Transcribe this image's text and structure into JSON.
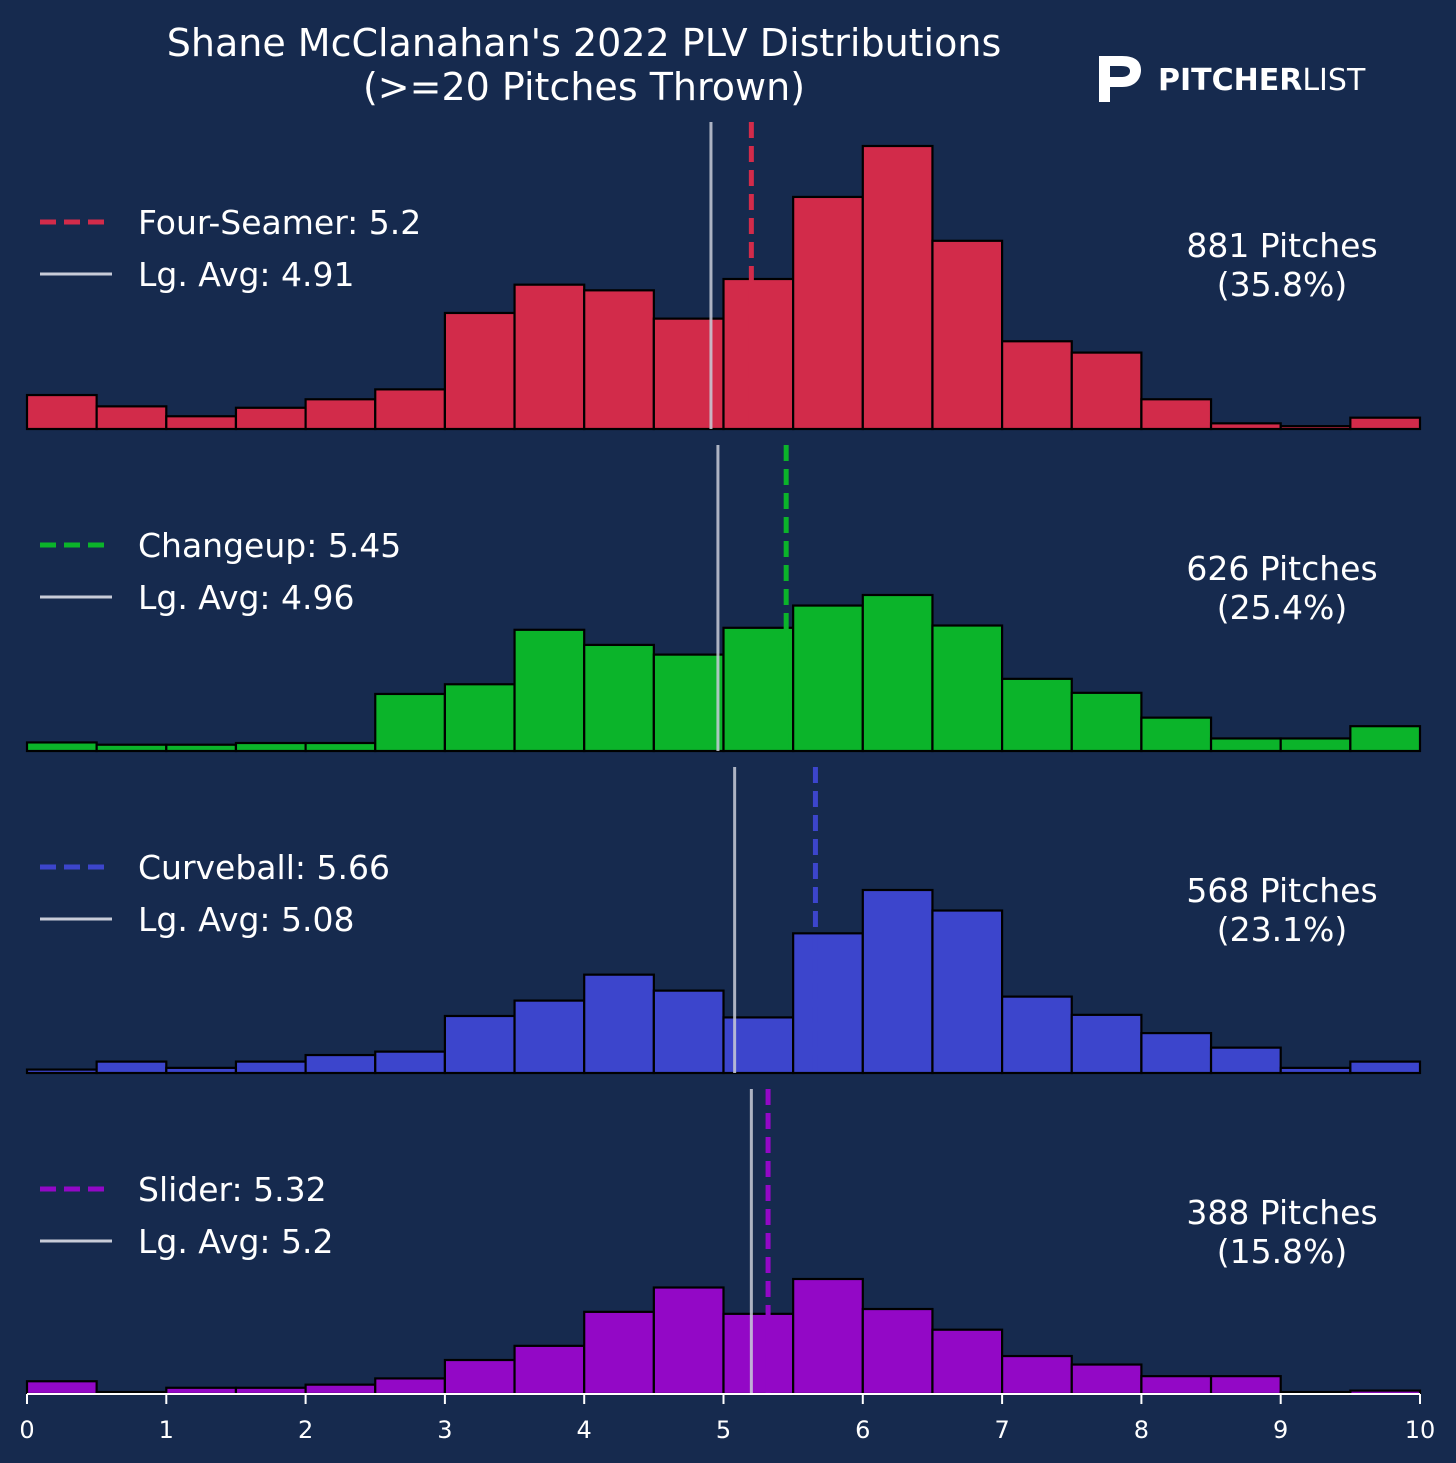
{
  "chart_data": {
    "type": "bar",
    "title_line1": "Shane McClanahan's 2022 PLV Distributions",
    "title_line2": "(>=20 Pitches Thrown)",
    "logo": {
      "bold": "PITCHER",
      "light": "LIST"
    },
    "xlim": [
      0,
      10
    ],
    "xticks": [
      0,
      1,
      2,
      3,
      4,
      5,
      6,
      7,
      8,
      9,
      10
    ],
    "bin_width": 0.5,
    "bin_starts": [
      0,
      0.5,
      1,
      1.5,
      2,
      2.5,
      3,
      3.5,
      4,
      4.5,
      5,
      5.5,
      6,
      6.5,
      7,
      7.5,
      8,
      8.5,
      9,
      9.5
    ],
    "panels": [
      {
        "pitch": "Four-Seamer",
        "color": "#d22b4a",
        "mean": 5.2,
        "league_avg": 4.91,
        "legend_pitch": "Four-Seamer: 5.2",
        "legend_avg": "Lg. Avg: 4.91",
        "count_label": "881 Pitches",
        "pct_label": "(35.8%)",
        "ymax": 1.0,
        "values": [
          0.12,
          0.08,
          0.045,
          0.075,
          0.105,
          0.14,
          0.41,
          0.51,
          0.49,
          0.39,
          0.53,
          0.82,
          1.0,
          0.665,
          0.31,
          0.27,
          0.105,
          0.02,
          0.01,
          0.04
        ]
      },
      {
        "pitch": "Changeup",
        "color": "#0bb42a",
        "mean": 5.45,
        "league_avg": 4.96,
        "legend_pitch": "Changeup: 5.45",
        "legend_avg": "Lg. Avg: 4.96",
        "count_label": "626 Pitches",
        "pct_label": "(25.4%)",
        "ymax": 1.0,
        "values": [
          0.03,
          0.022,
          0.022,
          0.028,
          0.028,
          0.2,
          0.234,
          0.425,
          0.372,
          0.338,
          0.432,
          0.51,
          0.547,
          0.44,
          0.253,
          0.204,
          0.117,
          0.044,
          0.044,
          0.087
        ]
      },
      {
        "pitch": "Curveball",
        "color": "#3c45cc",
        "mean": 5.66,
        "league_avg": 5.08,
        "legend_pitch": "Curveball: 5.66",
        "legend_avg": "Lg. Avg: 5.08",
        "count_label": "568 Pitches",
        "pct_label": "(23.1%)",
        "ymax": 1.0,
        "values": [
          0.012,
          0.04,
          0.018,
          0.04,
          0.063,
          0.075,
          0.2,
          0.254,
          0.345,
          0.289,
          0.195,
          0.49,
          0.642,
          0.57,
          0.268,
          0.204,
          0.14,
          0.089,
          0.018,
          0.04
        ]
      },
      {
        "pitch": "Slider",
        "color": "#9308c6",
        "mean": 5.32,
        "league_avg": 5.2,
        "legend_pitch": "Slider: 5.32",
        "legend_avg": "Lg. Avg: 5.2",
        "count_label": "388 Pitches",
        "pct_label": "(15.8%)",
        "ymax": 1.0,
        "values": [
          0.045,
          0.007,
          0.022,
          0.022,
          0.033,
          0.055,
          0.12,
          0.17,
          0.29,
          0.376,
          0.283,
          0.406,
          0.3,
          0.227,
          0.134,
          0.104,
          0.063,
          0.063,
          0.007,
          0.012
        ]
      }
    ]
  }
}
